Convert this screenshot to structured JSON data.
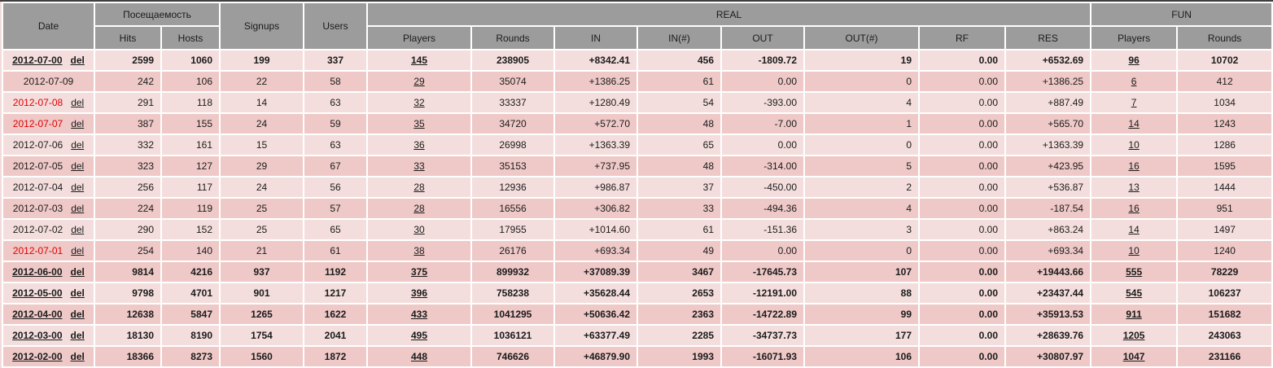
{
  "colors": {
    "header_bg": "#9c9c9c",
    "row_light": "#f4dedd",
    "row_dark": "#eec9c7",
    "weekend_date": "#e00000",
    "grid": "#ffffff",
    "outer_border": "#3f3f3f",
    "text": "#1b1b1b"
  },
  "table": {
    "header": {
      "date": "Date",
      "attendance_group": "Посещаемость",
      "hits": "Hits",
      "hosts": "Hosts",
      "signups": "Signups",
      "users": "Users",
      "real_group": "REAL",
      "real_players": "Players",
      "real_rounds": "Rounds",
      "in": "IN",
      "in_count": "IN(#)",
      "out": "OUT",
      "out_count": "OUT(#)",
      "rf": "RF",
      "res": "RES",
      "fun_group": "FUN",
      "fun_players": "Players",
      "fun_rounds": "Rounds"
    },
    "del_label": "del",
    "rows": [
      {
        "date": "2012-07-00",
        "del": true,
        "monthly": true,
        "weekend": false,
        "bold": true,
        "shade": "light",
        "hits": "2599",
        "hosts": "1060",
        "signups": "199",
        "users": "337",
        "real_players": "145",
        "real_rounds": "238905",
        "in": "+8342.41",
        "in_count": "456",
        "out": "-1809.72",
        "out_count": "19",
        "rf": "0.00",
        "res": "+6532.69",
        "fun_players": "96",
        "fun_rounds": "10702"
      },
      {
        "date": "2012-07-09",
        "del": false,
        "monthly": false,
        "weekend": false,
        "bold": false,
        "shade": "dark",
        "hits": "242",
        "hosts": "106",
        "signups": "22",
        "users": "58",
        "real_players": "29",
        "real_rounds": "35074",
        "in": "+1386.25",
        "in_count": "61",
        "out": "0.00",
        "out_count": "0",
        "rf": "0.00",
        "res": "+1386.25",
        "fun_players": "6",
        "fun_rounds": "412"
      },
      {
        "date": "2012-07-08",
        "del": true,
        "monthly": false,
        "weekend": true,
        "bold": false,
        "shade": "light",
        "hits": "291",
        "hosts": "118",
        "signups": "14",
        "users": "63",
        "real_players": "32",
        "real_rounds": "33337",
        "in": "+1280.49",
        "in_count": "54",
        "out": "-393.00",
        "out_count": "4",
        "rf": "0.00",
        "res": "+887.49",
        "fun_players": "7",
        "fun_rounds": "1034"
      },
      {
        "date": "2012-07-07",
        "del": true,
        "monthly": false,
        "weekend": true,
        "bold": false,
        "shade": "dark",
        "hits": "387",
        "hosts": "155",
        "signups": "24",
        "users": "59",
        "real_players": "35",
        "real_rounds": "34720",
        "in": "+572.70",
        "in_count": "48",
        "out": "-7.00",
        "out_count": "1",
        "rf": "0.00",
        "res": "+565.70",
        "fun_players": "14",
        "fun_rounds": "1243"
      },
      {
        "date": "2012-07-06",
        "del": true,
        "monthly": false,
        "weekend": false,
        "bold": false,
        "shade": "light",
        "hits": "332",
        "hosts": "161",
        "signups": "15",
        "users": "63",
        "real_players": "36",
        "real_rounds": "26998",
        "in": "+1363.39",
        "in_count": "65",
        "out": "0.00",
        "out_count": "0",
        "rf": "0.00",
        "res": "+1363.39",
        "fun_players": "10",
        "fun_rounds": "1286"
      },
      {
        "date": "2012-07-05",
        "del": true,
        "monthly": false,
        "weekend": false,
        "bold": false,
        "shade": "dark",
        "hits": "323",
        "hosts": "127",
        "signups": "29",
        "users": "67",
        "real_players": "33",
        "real_rounds": "35153",
        "in": "+737.95",
        "in_count": "48",
        "out": "-314.00",
        "out_count": "5",
        "rf": "0.00",
        "res": "+423.95",
        "fun_players": "16",
        "fun_rounds": "1595"
      },
      {
        "date": "2012-07-04",
        "del": true,
        "monthly": false,
        "weekend": false,
        "bold": false,
        "shade": "light",
        "hits": "256",
        "hosts": "117",
        "signups": "24",
        "users": "56",
        "real_players": "28",
        "real_rounds": "12936",
        "in": "+986.87",
        "in_count": "37",
        "out": "-450.00",
        "out_count": "2",
        "rf": "0.00",
        "res": "+536.87",
        "fun_players": "13",
        "fun_rounds": "1444"
      },
      {
        "date": "2012-07-03",
        "del": true,
        "monthly": false,
        "weekend": false,
        "bold": false,
        "shade": "dark",
        "hits": "224",
        "hosts": "119",
        "signups": "25",
        "users": "57",
        "real_players": "28",
        "real_rounds": "16556",
        "in": "+306.82",
        "in_count": "33",
        "out": "-494.36",
        "out_count": "4",
        "rf": "0.00",
        "res": "-187.54",
        "fun_players": "16",
        "fun_rounds": "951"
      },
      {
        "date": "2012-07-02",
        "del": true,
        "monthly": false,
        "weekend": false,
        "bold": false,
        "shade": "light",
        "hits": "290",
        "hosts": "152",
        "signups": "25",
        "users": "65",
        "real_players": "30",
        "real_rounds": "17955",
        "in": "+1014.60",
        "in_count": "61",
        "out": "-151.36",
        "out_count": "3",
        "rf": "0.00",
        "res": "+863.24",
        "fun_players": "14",
        "fun_rounds": "1497"
      },
      {
        "date": "2012-07-01",
        "del": true,
        "monthly": false,
        "weekend": true,
        "bold": false,
        "shade": "dark",
        "hits": "254",
        "hosts": "140",
        "signups": "21",
        "users": "61",
        "real_players": "38",
        "real_rounds": "26176",
        "in": "+693.34",
        "in_count": "49",
        "out": "0.00",
        "out_count": "0",
        "rf": "0.00",
        "res": "+693.34",
        "fun_players": "10",
        "fun_rounds": "1240"
      },
      {
        "date": "2012-06-00",
        "del": true,
        "monthly": true,
        "weekend": false,
        "bold": true,
        "shade": "dark",
        "hits": "9814",
        "hosts": "4216",
        "signups": "937",
        "users": "1192",
        "real_players": "375",
        "real_rounds": "899932",
        "in": "+37089.39",
        "in_count": "3467",
        "out": "-17645.73",
        "out_count": "107",
        "rf": "0.00",
        "res": "+19443.66",
        "fun_players": "555",
        "fun_rounds": "78229"
      },
      {
        "date": "2012-05-00",
        "del": true,
        "monthly": true,
        "weekend": false,
        "bold": true,
        "shade": "light",
        "hits": "9798",
        "hosts": "4701",
        "signups": "901",
        "users": "1217",
        "real_players": "396",
        "real_rounds": "758238",
        "in": "+35628.44",
        "in_count": "2653",
        "out": "-12191.00",
        "out_count": "88",
        "rf": "0.00",
        "res": "+23437.44",
        "fun_players": "545",
        "fun_rounds": "106237"
      },
      {
        "date": "2012-04-00",
        "del": true,
        "monthly": true,
        "weekend": false,
        "bold": true,
        "shade": "dark",
        "hits": "12638",
        "hosts": "5847",
        "signups": "1265",
        "users": "1622",
        "real_players": "433",
        "real_rounds": "1041295",
        "in": "+50636.42",
        "in_count": "2363",
        "out": "-14722.89",
        "out_count": "99",
        "rf": "0.00",
        "res": "+35913.53",
        "fun_players": "911",
        "fun_rounds": "151682"
      },
      {
        "date": "2012-03-00",
        "del": true,
        "monthly": true,
        "weekend": false,
        "bold": true,
        "shade": "light",
        "hits": "18130",
        "hosts": "8190",
        "signups": "1754",
        "users": "2041",
        "real_players": "495",
        "real_rounds": "1036121",
        "in": "+63377.49",
        "in_count": "2285",
        "out": "-34737.73",
        "out_count": "177",
        "rf": "0.00",
        "res": "+28639.76",
        "fun_players": "1205",
        "fun_rounds": "243063"
      },
      {
        "date": "2012-02-00",
        "del": true,
        "monthly": true,
        "weekend": false,
        "bold": true,
        "shade": "dark",
        "hits": "18366",
        "hosts": "8273",
        "signups": "1560",
        "users": "1872",
        "real_players": "448",
        "real_rounds": "746626",
        "in": "+46879.90",
        "in_count": "1993",
        "out": "-16071.93",
        "out_count": "106",
        "rf": "0.00",
        "res": "+30807.97",
        "fun_players": "1047",
        "fun_rounds": "231166"
      }
    ]
  }
}
